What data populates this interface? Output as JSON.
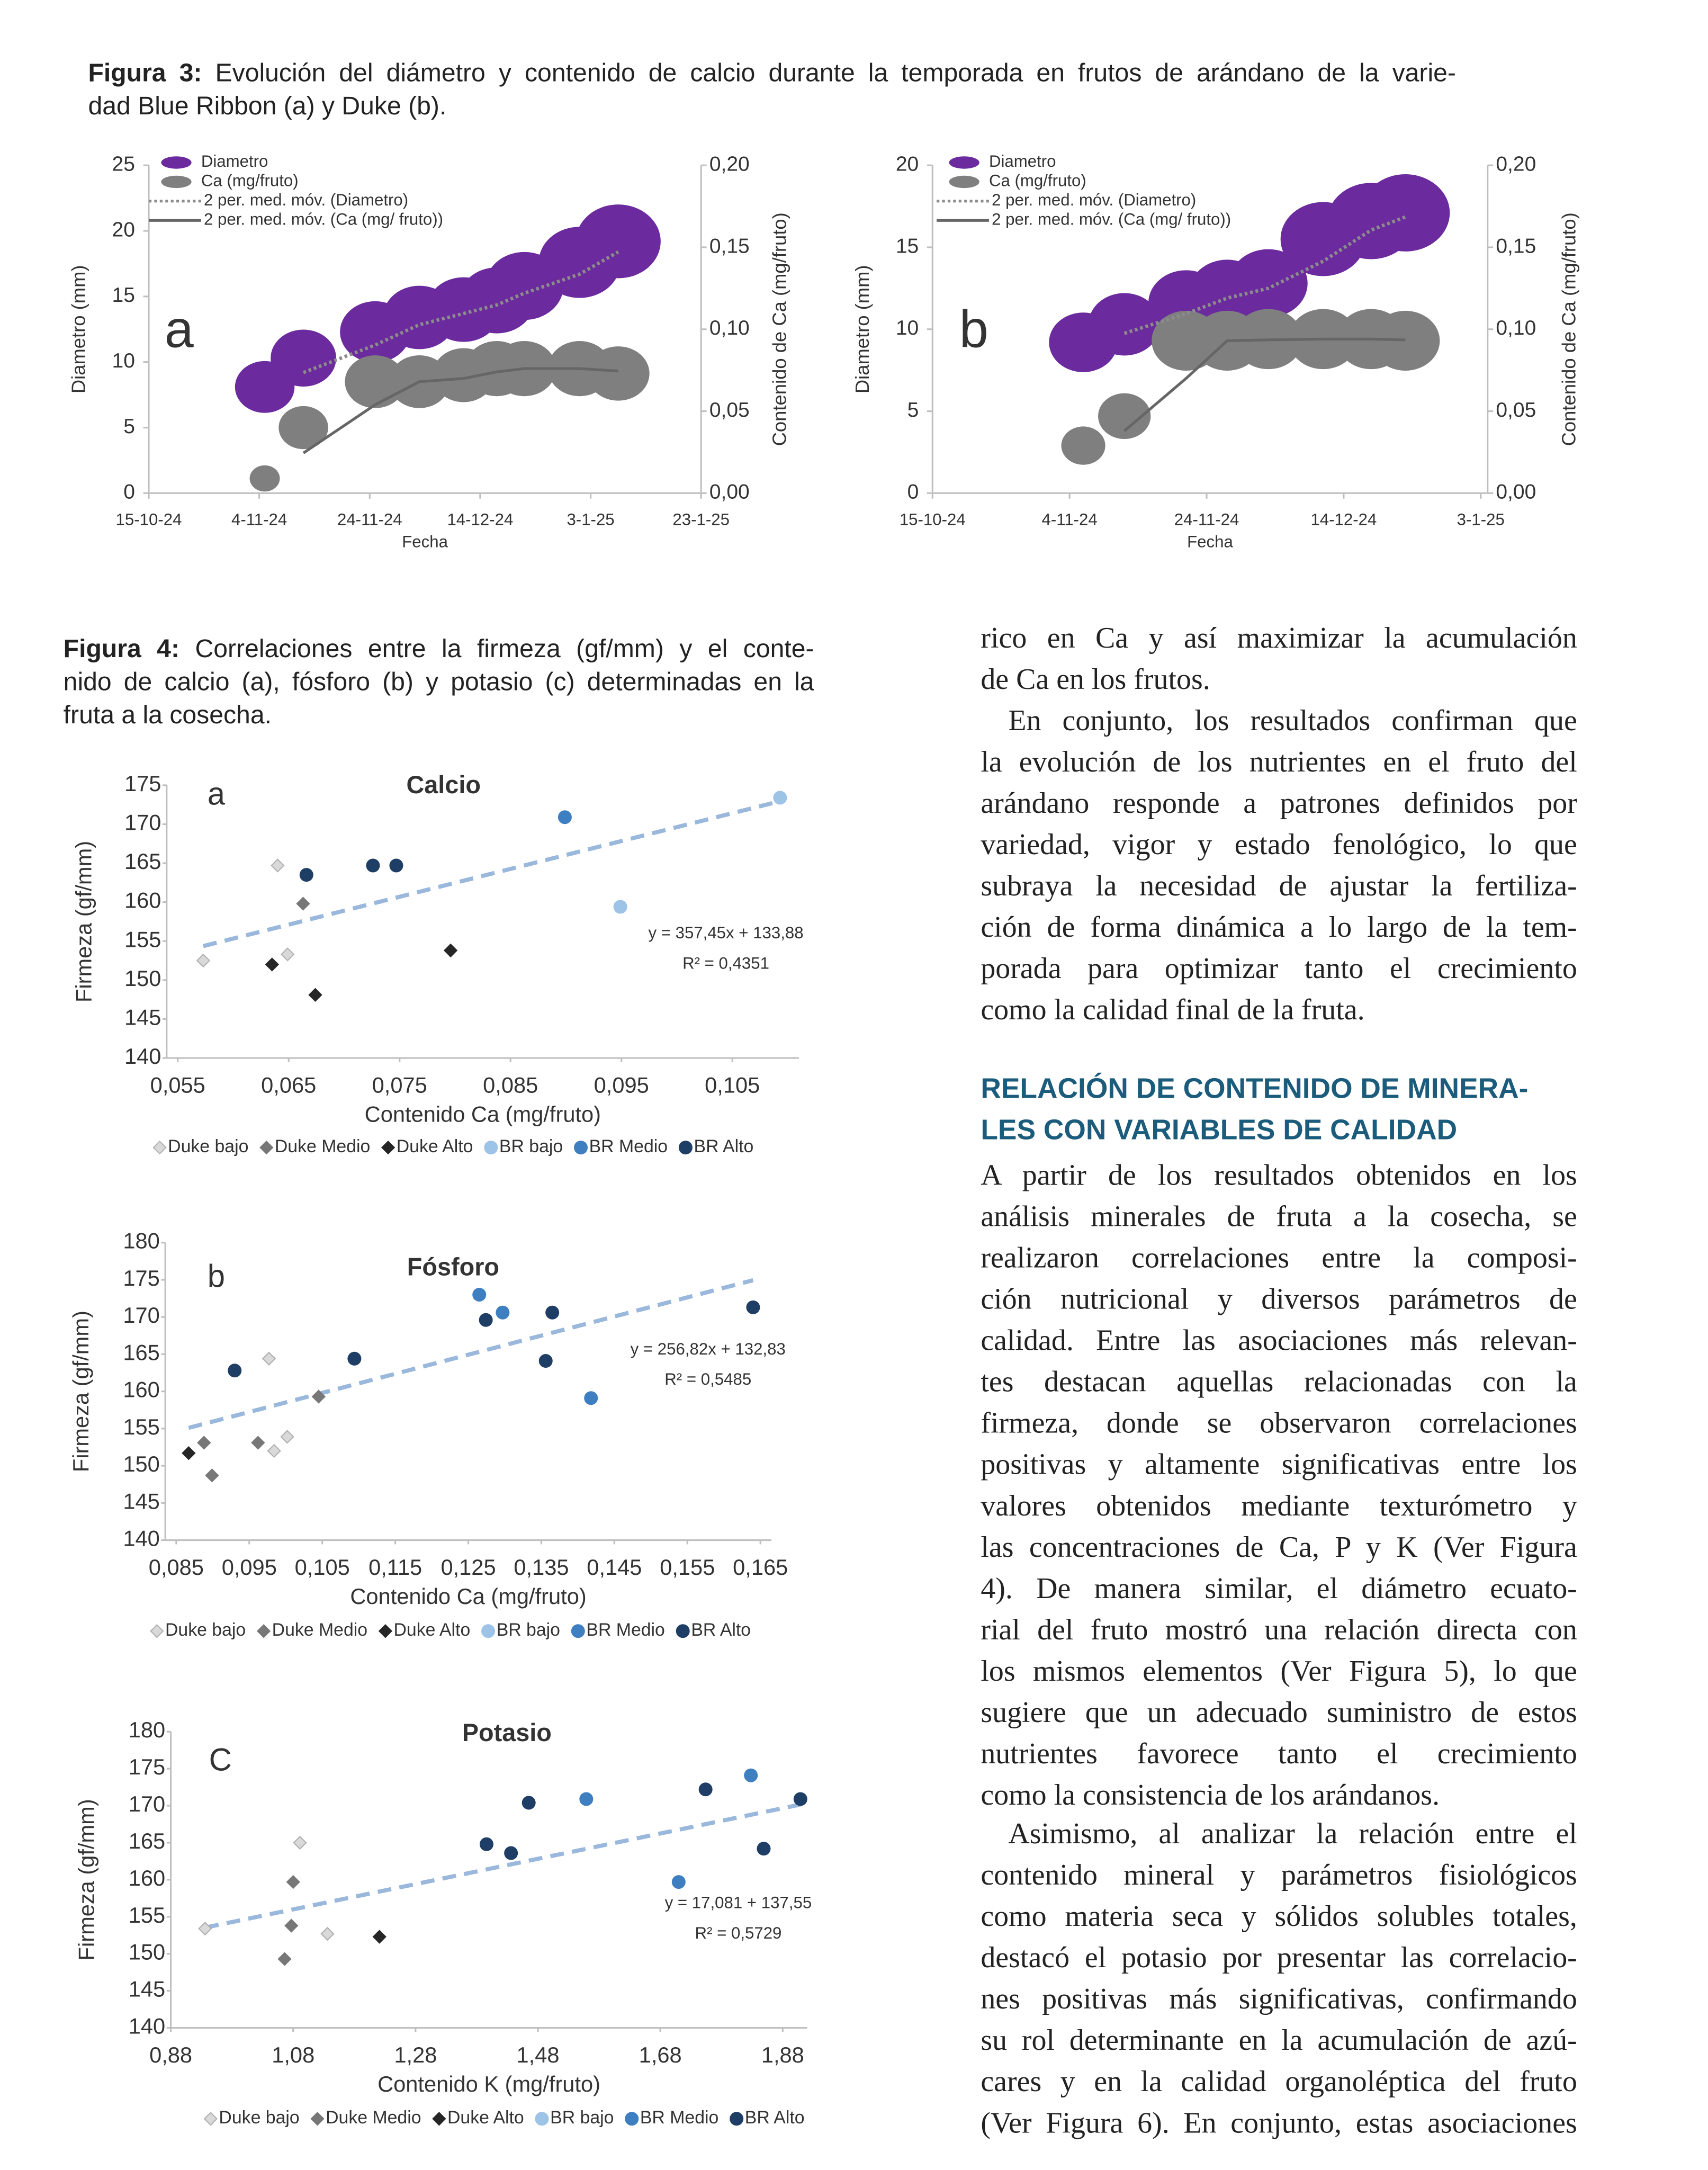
{
  "document": {
    "figure3": {
      "label": "Figura 3:",
      "lines": [
        "Evolución del diámetro y contenido de calcio durante la temporada en frutos de arándano de la varie-",
        "dad Blue Ribbon (a) y Duke (b)."
      ]
    },
    "figure4": {
      "label": "Figura 4:",
      "lines": [
        "Correlaciones entre la firmeza (gf/mm) y el conte-",
        "nido de calcio (a), fósforo (b) y potasio (c) determinadas en la",
        "fruta a la cosecha."
      ]
    },
    "body": {
      "paragraph_0": [
        "rico en Ca y así maximizar la acumulación",
        "de Ca en los frutos."
      ],
      "paragraph_1": [
        "En conjunto, los resultados confirman que",
        "la evolución de los nutrientes en el fruto del",
        "arándano responde a patrones definidos por",
        "variedad, vigor y estado fenológico, lo que",
        "subraya la necesidad de ajustar la fertiliza-",
        "ción de forma dinámica a lo largo de la tem-",
        "porada para optimizar tanto el crecimiento",
        "como la calidad final de la fruta."
      ],
      "heading": [
        "RELACIÓN DE CONTENIDO DE MINERA-",
        "LES CON VARIABLES DE CALIDAD"
      ],
      "paragraph_2": [
        "A partir de los resultados obtenidos en los",
        "análisis minerales de fruta a la cosecha, se",
        "realizaron correlaciones entre la composi-",
        "ción nutricional y diversos parámetros de",
        "calidad. Entre las asociaciones más relevan-",
        "tes destacan aquellas relacionadas con la",
        "firmeza, donde se observaron correlaciones",
        "positivas y altamente significativas entre los",
        "valores obtenidos mediante texturómetro y",
        "las concentraciones de Ca, P y K (Ver Figura",
        "4). De manera similar, el diámetro ecuato-",
        "rial del fruto mostró una relación directa con",
        "los mismos elementos (Ver Figura 5), lo que",
        "sugiere que un adecuado suministro de estos",
        "nutrientes favorece tanto el crecimiento",
        "como la consistencia de los arándanos."
      ],
      "paragraph_3": [
        "Asimismo, al analizar la relación entre el",
        "contenido mineral y parámetros fisiológicos",
        "como materia seca y sólidos solubles totales,",
        "destacó el potasio por presentar las correlacio-",
        "nes positivas más significativas, confirmando",
        "su rol determinante en la acumulación de azú-",
        "cares y en la calidad organoléptica del fruto",
        "(Ver Figura 6). En conjunto, estas asociaciones"
      ]
    }
  },
  "chart_data": [
    {
      "type": "bubble",
      "panel_label": "a",
      "x_label": "Fecha",
      "y_label": "Diametro (mm)",
      "y2_label": "Contenido de Ca (mg/fruto)",
      "x": [
        "5-11-24",
        "12-11-24",
        "25-11-24",
        "3-12-24",
        "11-12-24",
        "17-12-24",
        "22-12-24",
        "1-1-25",
        "8-1-25"
      ],
      "xlim": [
        "15-10-24",
        "23-1-25"
      ],
      "xticks": [
        "15-10-24",
        "4-11-24",
        "24-11-24",
        "14-12-24",
        "3-1-25",
        "23-1-25"
      ],
      "ylim": [
        0,
        25
      ],
      "yticks": [
        0,
        5,
        10,
        15,
        20,
        25
      ],
      "y2lim": [
        0,
        0.2
      ],
      "y2ticks": [
        {
          "value": 0,
          "label": "0,00"
        },
        {
          "value": 0.05,
          "label": "0,05"
        },
        {
          "value": 0.1,
          "label": "0,10"
        },
        {
          "value": 0.15,
          "label": "0,15"
        },
        {
          "value": 0.2,
          "label": "0,20"
        }
      ],
      "series": [
        {
          "name": "Diametro",
          "color": "#6b2a9e",
          "values": [
            8.1,
            10.3,
            12.3,
            13.4,
            14.0,
            14.7,
            15.8,
            17.6,
            19.2
          ],
          "moving_average": {
            "name": "2 per. med. móv. (Diametro)",
            "color": "#8c8c8c",
            "style": "dotted"
          }
        },
        {
          "name": "Ca (mg/fruto)",
          "color": "#7f7f7f",
          "axis": "y2",
          "values": [
            0.009,
            0.04,
            0.068,
            0.068,
            0.072,
            0.076,
            0.076,
            0.076,
            0.073
          ],
          "moving_average": {
            "name": "2 per. med. móv. (Ca (mg/ fruto))",
            "color": "#666666",
            "style": "solid"
          }
        }
      ]
    },
    {
      "type": "bubble",
      "panel_label": "b",
      "x_label": "Fecha",
      "y_label": "Diametro (mm)",
      "y2_label": "Contenido de Ca (mg/fruto)",
      "x": [
        "6-11-24",
        "12-11-24",
        "21-11-24",
        "27-11-24",
        "3-12-24",
        "11-12-24",
        "18-12-24",
        "23-12-24"
      ],
      "xlim": [
        "15-10-24",
        "4-1-25"
      ],
      "xticks": [
        "15-10-24",
        "4-11-24",
        "24-11-24",
        "14-12-24",
        "3-1-25"
      ],
      "ylim": [
        0,
        20
      ],
      "yticks": [
        0,
        5,
        10,
        15,
        20
      ],
      "y2lim": [
        0,
        0.2
      ],
      "y2ticks": [
        {
          "value": 0,
          "label": "0,00"
        },
        {
          "value": 0.05,
          "label": "0,05"
        },
        {
          "value": 0.1,
          "label": "0,10"
        },
        {
          "value": 0.15,
          "label": "0,15"
        },
        {
          "value": 0.2,
          "label": "0,20"
        }
      ],
      "series": [
        {
          "name": "Diametro",
          "color": "#6b2a9e",
          "values": [
            9.2,
            10.3,
            11.6,
            12.2,
            12.8,
            15.5,
            16.6,
            17.1
          ],
          "moving_average": {
            "name": "2 per. med. móv. (Diametro)",
            "color": "#8c8c8c",
            "style": "dotted"
          }
        },
        {
          "name": "Ca (mg/fruto)",
          "color": "#7f7f7f",
          "axis": "y2",
          "values": [
            0.029,
            0.047,
            0.093,
            0.093,
            0.094,
            0.094,
            0.094,
            0.093
          ],
          "moving_average": {
            "name": "2 per. med. móv. (Ca (mg/ fruto))",
            "color": "#666666",
            "style": "solid"
          }
        }
      ]
    },
    {
      "type": "scatter",
      "title": "Calcio",
      "panel_label": "a",
      "x_label": "Contenido Ca (mg/fruto)",
      "y_label": "Firmeza (gf/mm)",
      "xlim": [
        0.054,
        0.111
      ],
      "xticks": [
        {
          "value": 0.055,
          "label": "0,055"
        },
        {
          "value": 0.065,
          "label": "0,065"
        },
        {
          "value": 0.075,
          "label": "0,075"
        },
        {
          "value": 0.085,
          "label": "0,085"
        },
        {
          "value": 0.095,
          "label": "0,095"
        },
        {
          "value": 0.105,
          "label": "0,105"
        }
      ],
      "ylim": [
        140,
        175
      ],
      "yticks": [
        140,
        145,
        150,
        155,
        160,
        165,
        170,
        175
      ],
      "series": [
        {
          "name": "Duke bajo",
          "marker": "diamond",
          "color": "#d9d9d9",
          "x": [
            0.0573,
            0.064,
            0.0649
          ],
          "values": [
            152.5,
            164.7,
            153.3
          ]
        },
        {
          "name": "Duke Medio",
          "marker": "diamond",
          "color": "#777777",
          "x": [
            0.0663
          ],
          "values": [
            159.8
          ]
        },
        {
          "name": "Duke Alto",
          "marker": "diamond",
          "color": "#262626",
          "x": [
            0.0635,
            0.0674,
            0.0796
          ],
          "values": [
            152,
            148.1,
            153.8
          ]
        },
        {
          "name": "BR bajo",
          "marker": "circle",
          "color": "#9dc3e6",
          "x": [
            0.0949,
            0.1093
          ],
          "values": [
            159.4,
            173.4
          ]
        },
        {
          "name": "BR Medio",
          "marker": "circle",
          "color": "#3e7fc1",
          "x": [
            0.0899
          ],
          "values": [
            170.9
          ]
        },
        {
          "name": "BR Alto",
          "marker": "circle",
          "color": "#1f3e66",
          "x": [
            0.0666,
            0.0726,
            0.0747
          ],
          "values": [
            163.5,
            164.7,
            164.7
          ]
        }
      ],
      "trendline": {
        "slope": 357.45,
        "intercept": 133.88,
        "equation_label": "y = 357,45x + 133,88",
        "r2_label": "R² = 0,4351",
        "color": "#9ab7dc"
      }
    },
    {
      "type": "scatter",
      "title": "Fósforo",
      "panel_label": "b",
      "x_label": "Contenido Ca (mg/fruto)",
      "y_label": "Firmeza (gf/mm)",
      "xlim": [
        0.0835,
        0.1665
      ],
      "xticks": [
        {
          "value": 0.085,
          "label": "0,085"
        },
        {
          "value": 0.095,
          "label": "0,095"
        },
        {
          "value": 0.105,
          "label": "0,105"
        },
        {
          "value": 0.115,
          "label": "0,115"
        },
        {
          "value": 0.125,
          "label": "0,125"
        },
        {
          "value": 0.135,
          "label": "0,135"
        },
        {
          "value": 0.145,
          "label": "0,145"
        },
        {
          "value": 0.155,
          "label": "0,155"
        },
        {
          "value": 0.165,
          "label": "0,165"
        }
      ],
      "ylim": [
        140,
        180
      ],
      "yticks": [
        140,
        145,
        150,
        155,
        160,
        165,
        170,
        175,
        180
      ],
      "series": [
        {
          "name": "Duke bajo",
          "marker": "diamond",
          "color": "#d9d9d9",
          "x": [
            0.0977,
            0.0984,
            0.1002
          ],
          "values": [
            164.4,
            152.0,
            153.9
          ]
        },
        {
          "name": "Duke Medio",
          "marker": "diamond",
          "color": "#777777",
          "x": [
            0.0888,
            0.0899,
            0.0962,
            0.1045
          ],
          "values": [
            153.1,
            148.7,
            153.1,
            159.3
          ]
        },
        {
          "name": "Duke Alto",
          "marker": "diamond",
          "color": "#262626",
          "x": [
            0.0867
          ],
          "values": [
            151.7
          ]
        },
        {
          "name": "BR bajo",
          "marker": "circle",
          "color": "#9dc3e6",
          "x": [],
          "values": []
        },
        {
          "name": "BR Medio",
          "marker": "circle",
          "color": "#3e7fc1",
          "x": [
            0.1265,
            0.1297,
            0.1418
          ],
          "values": [
            173.0,
            170.6,
            159.1
          ]
        },
        {
          "name": "BR Alto",
          "marker": "circle",
          "color": "#1f3e66",
          "x": [
            0.093,
            0.1094,
            0.1274,
            0.1365,
            0.1356,
            0.164
          ],
          "values": [
            162.8,
            164.4,
            169.6,
            170.6,
            164.1,
            171.3
          ]
        }
      ],
      "trendline": {
        "slope": 256.82,
        "intercept": 132.83,
        "equation_label": "y = 256,82x + 132,83",
        "r2_label": "R² = 0,5485",
        "color": "#9ab7dc"
      }
    },
    {
      "type": "scatter",
      "title": "Potasio",
      "panel_label": "C",
      "x_label": "Contenido K (mg/fruto)",
      "y_label": "Firmeza (gf/mm)",
      "xlim": [
        0.88,
        1.92
      ],
      "xticks": [
        {
          "value": 0.88,
          "label": "0,88"
        },
        {
          "value": 1.08,
          "label": "1,08"
        },
        {
          "value": 1.28,
          "label": "1,28"
        },
        {
          "value": 1.48,
          "label": "1,48"
        },
        {
          "value": 1.68,
          "label": "1,68"
        },
        {
          "value": 1.88,
          "label": "1,88"
        }
      ],
      "ylim": [
        140,
        180
      ],
      "yticks": [
        140,
        145,
        150,
        155,
        160,
        165,
        170,
        175,
        180
      ],
      "series": [
        {
          "name": "Duke bajo",
          "marker": "diamond",
          "color": "#d9d9d9",
          "x": [
            0.936,
            1.091,
            1.136
          ],
          "values": [
            153.4,
            165.0,
            152.7
          ]
        },
        {
          "name": "Duke Medio",
          "marker": "diamond",
          "color": "#777777",
          "x": [
            1.08,
            1.077,
            1.066
          ],
          "values": [
            159.7,
            153.8,
            149.3
          ]
        },
        {
          "name": "Duke Alto",
          "marker": "diamond",
          "color": "#262626",
          "x": [
            1.221
          ],
          "values": [
            152.3
          ]
        },
        {
          "name": "BR bajo",
          "marker": "circle",
          "color": "#9dc3e6",
          "x": [],
          "values": []
        },
        {
          "name": "BR Medio",
          "marker": "circle",
          "color": "#3e7fc1",
          "x": [
            1.559,
            1.71,
            1.828
          ],
          "values": [
            170.9,
            159.7,
            174.1
          ]
        },
        {
          "name": "BR Alto",
          "marker": "circle",
          "color": "#1f3e66",
          "x": [
            1.396,
            1.436,
            1.465,
            1.754,
            1.849,
            1.909
          ],
          "values": [
            164.8,
            163.6,
            170.4,
            172.2,
            164.2,
            170.9
          ]
        }
      ],
      "trendline": {
        "slope": 17.081,
        "intercept": 137.55,
        "equation_label": "y = 17,081 + 137,55",
        "r2_label": "R² = 0,5729",
        "color": "#9ab7dc"
      }
    }
  ]
}
